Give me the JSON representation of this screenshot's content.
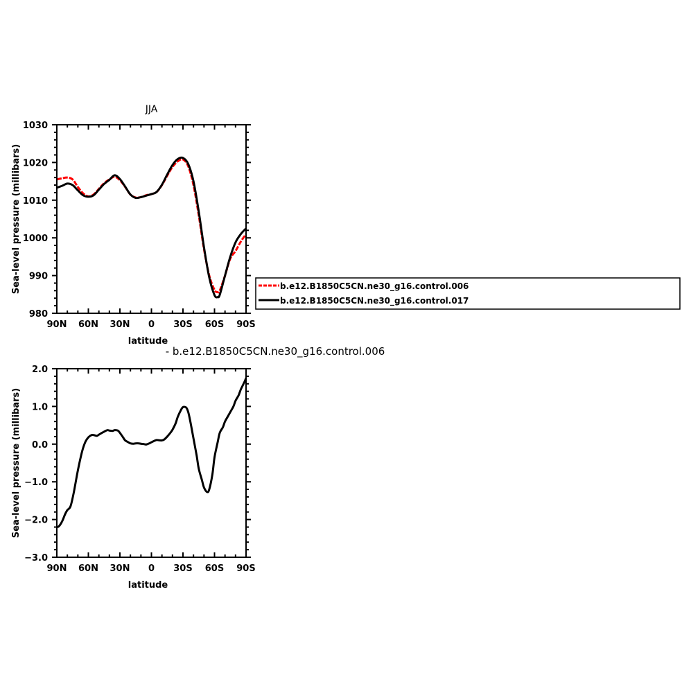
{
  "colors": {
    "control_006": "#ff0000",
    "control_017": "#000000",
    "difference": "#000000",
    "axes": "#000000"
  },
  "chart_data": [
    {
      "type": "line",
      "title": "JJA",
      "xlabel": "latitude",
      "ylabel": "Sea-level pressure (millibars)",
      "xlim": [
        90,
        -90
      ],
      "ylim": [
        980,
        1030
      ],
      "xticks": [
        90,
        60,
        30,
        0,
        -30,
        -60,
        -90
      ],
      "xtick_labels": [
        "90N",
        "60N",
        "30N",
        "0",
        "30S",
        "60S",
        "90S"
      ],
      "yticks": [
        980,
        990,
        1000,
        1010,
        1020,
        1030
      ],
      "ytick_labels": [
        "980",
        "990",
        "1000",
        "1010",
        "1020",
        "1030"
      ],
      "legend_position": "right",
      "series": [
        {
          "name": "b.e12.B1850C5CN.ne30_g16.control.006",
          "color": "#ff0000",
          "style": "dashed",
          "x": [
            90,
            85,
            80,
            75,
            70,
            65,
            60,
            55,
            50,
            45,
            40,
            35,
            30,
            25,
            20,
            15,
            10,
            5,
            0,
            -5,
            -10,
            -15,
            -20,
            -25,
            -30,
            -35,
            -40,
            -45,
            -50,
            -55,
            -60,
            -63,
            -65,
            -70,
            -75,
            -80,
            -85,
            -90
          ],
          "y": [
            1015.5,
            1015.8,
            1016.0,
            1015.5,
            1013.5,
            1011.8,
            1011.0,
            1011.5,
            1013.0,
            1014.5,
            1015.5,
            1016.2,
            1015.3,
            1013.5,
            1011.5,
            1010.7,
            1010.8,
            1011.3,
            1011.6,
            1012.2,
            1014.0,
            1016.5,
            1018.8,
            1020.3,
            1020.8,
            1019.0,
            1014.0,
            1006.0,
            997.0,
            990.0,
            986.2,
            985.6,
            986.0,
            990.0,
            994.5,
            996.5,
            999.0,
            1001.0
          ]
        },
        {
          "name": "b.e12.B1850C5CN.ne30_g16.control.017",
          "color": "#000000",
          "style": "solid",
          "x": [
            90,
            85,
            80,
            75,
            70,
            65,
            60,
            55,
            50,
            45,
            40,
            35,
            30,
            25,
            20,
            15,
            10,
            5,
            0,
            -5,
            -10,
            -15,
            -20,
            -25,
            -30,
            -35,
            -40,
            -45,
            -50,
            -55,
            -60,
            -63,
            -65,
            -70,
            -75,
            -80,
            -85,
            -90
          ],
          "y": [
            1013.3,
            1013.8,
            1014.4,
            1014.0,
            1012.6,
            1011.3,
            1010.9,
            1011.3,
            1012.8,
            1014.3,
            1015.4,
            1016.6,
            1015.6,
            1013.6,
            1011.5,
            1010.6,
            1010.8,
            1011.2,
            1011.6,
            1012.2,
            1014.1,
            1016.8,
            1019.3,
            1020.9,
            1021.2,
            1019.6,
            1015.0,
            1007.0,
            997.5,
            989.5,
            984.8,
            984.3,
            984.9,
            990.0,
            995.0,
            998.8,
            1001.0,
            1002.5
          ]
        }
      ]
    },
    {
      "type": "line",
      "title": "- b.e12.B1850C5CN.ne30_g16.control.006",
      "xlabel": "latitude",
      "ylabel": "Sea-level pressure (millibars)",
      "xlim": [
        90,
        -90
      ],
      "ylim": [
        -3.0,
        2.0
      ],
      "xticks": [
        90,
        60,
        30,
        0,
        -30,
        -60,
        -90
      ],
      "xtick_labels": [
        "90N",
        "60N",
        "30N",
        "0",
        "30S",
        "60S",
        "90S"
      ],
      "yticks": [
        -3.0,
        -2.0,
        -1.0,
        0.0,
        1.0,
        2.0
      ],
      "ytick_labels": [
        "−3.0",
        "−2.0",
        "−1.0",
        "0.0",
        "1.0",
        "2.0"
      ],
      "series": [
        {
          "color": "#000000",
          "style": "solid",
          "x": [
            90,
            88,
            85,
            82,
            80,
            77,
            74,
            70,
            66,
            63,
            60,
            57,
            55,
            52,
            50,
            47,
            45,
            42,
            40,
            37,
            35,
            32,
            30,
            27,
            25,
            22,
            20,
            17,
            15,
            12,
            10,
            7,
            5,
            2,
            0,
            -3,
            -5,
            -8,
            -10,
            -12,
            -15,
            -18,
            -20,
            -23,
            -25,
            -28,
            -30,
            -33,
            -35,
            -37,
            -40,
            -43,
            -45,
            -48,
            -50,
            -53,
            -55,
            -58,
            -60,
            -63,
            -65,
            -68,
            -70,
            -73,
            -75,
            -78,
            -80,
            -83,
            -85,
            -88,
            -90
          ],
          "y": [
            -2.2,
            -2.18,
            -2.05,
            -1.85,
            -1.75,
            -1.65,
            -1.3,
            -0.7,
            -0.2,
            0.05,
            0.18,
            0.24,
            0.24,
            0.22,
            0.25,
            0.3,
            0.33,
            0.37,
            0.36,
            0.35,
            0.37,
            0.36,
            0.3,
            0.18,
            0.1,
            0.05,
            0.02,
            0.01,
            0.02,
            0.02,
            0.01,
            0.0,
            -0.01,
            0.02,
            0.05,
            0.09,
            0.11,
            0.1,
            0.1,
            0.12,
            0.2,
            0.3,
            0.38,
            0.55,
            0.72,
            0.9,
            0.98,
            0.97,
            0.85,
            0.6,
            0.15,
            -0.3,
            -0.65,
            -0.95,
            -1.15,
            -1.27,
            -1.2,
            -0.8,
            -0.35,
            0.05,
            0.3,
            0.45,
            0.6,
            0.75,
            0.85,
            1.0,
            1.15,
            1.3,
            1.45,
            1.62,
            1.75
          ]
        }
      ]
    }
  ]
}
